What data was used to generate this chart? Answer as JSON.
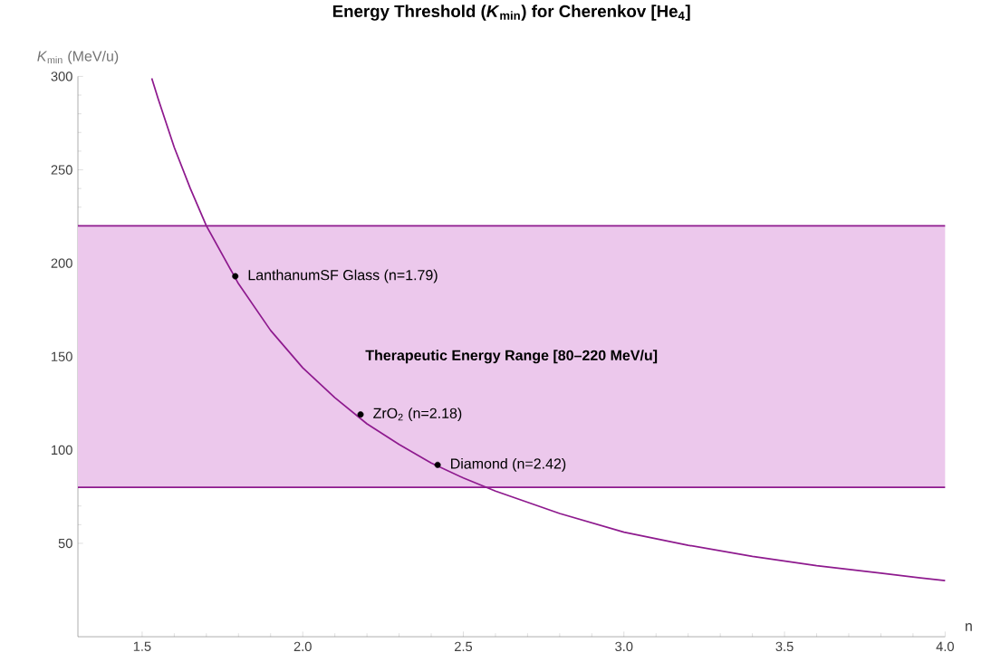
{
  "chart_data": {
    "type": "line",
    "title": "Energy Threshold (*K*$_{min}$) for Cherenkov [He$_{4}$]",
    "xlabel": "n",
    "ylabel": "*K*$_{min}$ (MeV/u)",
    "series": [
      {
        "color": "#8e1a8e",
        "x": [
          1.53,
          1.55,
          1.6,
          1.65,
          1.7,
          1.8,
          1.9,
          2.0,
          2.1,
          2.2,
          2.3,
          2.4,
          2.5,
          2.6,
          2.8,
          3.0,
          3.2,
          3.4,
          3.6,
          3.8,
          4.0
        ],
        "values": [
          299,
          288,
          262,
          240,
          220,
          189,
          164,
          144,
          128,
          114,
          103,
          93,
          85,
          78,
          66,
          56,
          49,
          43,
          38,
          34,
          30
        ]
      },
      {
        "type": "scatter",
        "color": "#000000",
        "x": [
          1.79,
          2.18,
          2.42
        ],
        "values": [
          193,
          119,
          92
        ]
      }
    ],
    "annotations": [
      {
        "text": "LanthanumSF Glass (n=1.79)",
        "x": 1.79,
        "y": 193
      },
      {
        "text": "ZrO$_{2}$ (n=2.18)",
        "x": 2.18,
        "y": 119
      },
      {
        "text": "Diamond (n=2.42)",
        "x": 2.42,
        "y": 92
      }
    ],
    "ref_lines": [
      {
        "axis": "y",
        "value": 80,
        "color": "#8e1a8e"
      },
      {
        "axis": "y",
        "value": 220,
        "color": "#8e1a8e"
      }
    ],
    "bands": [
      {
        "axis": "y",
        "from": 80,
        "to": 220,
        "label": "Therapeutic Energy Range [80–220 MeV/u]",
        "color": "#ecc8ec"
      }
    ],
    "xlim": [
      1.3,
      4.0
    ],
    "ylim": [
      0,
      300
    ],
    "xticks": [
      1.5,
      {
        "value": 2.0,
        "label": "2.0"
      },
      2.5,
      {
        "value": 3.0,
        "label": "3.0"
      },
      3.5,
      {
        "value": 4.0,
        "label": "4.0"
      }
    ],
    "yticks": [
      50,
      100,
      150,
      200,
      250,
      300
    ],
    "grid": false
  }
}
